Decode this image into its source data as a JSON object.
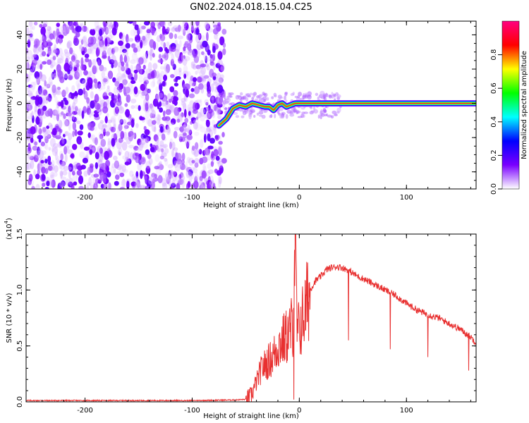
{
  "title": "GN02.2024.018.15.04.C25",
  "chart_data": [
    {
      "type": "heatmap",
      "xlabel": "Height of straight line (km)",
      "ylabel": "Frequency (Hz)",
      "xlim": [
        -255,
        165
      ],
      "ylim": [
        -50,
        48
      ],
      "xticks": [
        -200,
        -100,
        0,
        100
      ],
      "yticks": [
        -40,
        -20,
        0,
        20,
        40
      ],
      "noise_region_x": [
        -255,
        -70
      ],
      "ridge": [
        [
          -75,
          -13
        ],
        [
          -68,
          -9
        ],
        [
          -62,
          -3
        ],
        [
          -56,
          -1
        ],
        [
          -50,
          -2
        ],
        [
          -44,
          0
        ],
        [
          -38,
          -1
        ],
        [
          -32,
          -2
        ],
        [
          -28,
          -2
        ],
        [
          -24,
          -4
        ],
        [
          -20,
          -1
        ],
        [
          -16,
          0
        ],
        [
          -12,
          -2
        ],
        [
          -8,
          -1
        ],
        [
          -4,
          0
        ],
        [
          0,
          0
        ],
        [
          20,
          0
        ],
        [
          165,
          0
        ]
      ],
      "colorbar": {
        "label": "Normalized spectral amplitude",
        "range": [
          0.0,
          1.0
        ],
        "ticks": [
          "0.0",
          "0.2",
          "0.4",
          "0.6",
          "0.8"
        ],
        "tick_values": [
          0.0,
          0.2,
          0.4,
          0.6,
          0.8
        ],
        "colors": [
          "#ffffff",
          "#7a00ff",
          "#0000ff",
          "#00ffff",
          "#00ff00",
          "#ffff00",
          "#ff0000",
          "#ff0080"
        ]
      }
    },
    {
      "type": "line",
      "xlabel": "Height of straight line (km)",
      "ylabel": "SNR (10 * v/v)",
      "yscale_label": "(x10",
      "yscale_exp": "4",
      "yscale_close": ")",
      "xlim": [
        -255,
        165
      ],
      "ylim": [
        0.0,
        1.5
      ],
      "xticks": [
        -200,
        -100,
        0,
        100
      ],
      "yticks": [
        "0.0",
        "0.5",
        "1.0",
        "1.5"
      ],
      "ytick_values": [
        0.0,
        0.5,
        1.0,
        1.5
      ],
      "line_color": "#e83030",
      "series": [
        {
          "x": [
            -255,
            -100,
            -60,
            -50,
            -45,
            -40,
            -35,
            -30,
            -25,
            -20,
            -15,
            -10,
            -6,
            -4,
            -2,
            0,
            5,
            10,
            15,
            20,
            25,
            30,
            35,
            40,
            45,
            50,
            55,
            60,
            70,
            80,
            90,
            100,
            110,
            120,
            130,
            140,
            150,
            160,
            165
          ],
          "y": [
            0.0,
            0.0,
            0.005,
            0.01,
            0.05,
            0.18,
            0.3,
            0.35,
            0.4,
            0.5,
            0.55,
            0.6,
            0.7,
            1.5,
            0.6,
            0.65,
            0.8,
            1.0,
            1.08,
            1.12,
            1.18,
            1.2,
            1.21,
            1.2,
            1.18,
            1.15,
            1.12,
            1.1,
            1.05,
            1.0,
            0.95,
            0.88,
            0.82,
            0.78,
            0.75,
            0.7,
            0.65,
            0.58,
            0.53
          ]
        }
      ],
      "dips": [
        [
          -5,
          0.02
        ],
        [
          46,
          0.55
        ],
        [
          85,
          0.47
        ],
        [
          120,
          0.4
        ],
        [
          158,
          0.28
        ]
      ]
    }
  ]
}
